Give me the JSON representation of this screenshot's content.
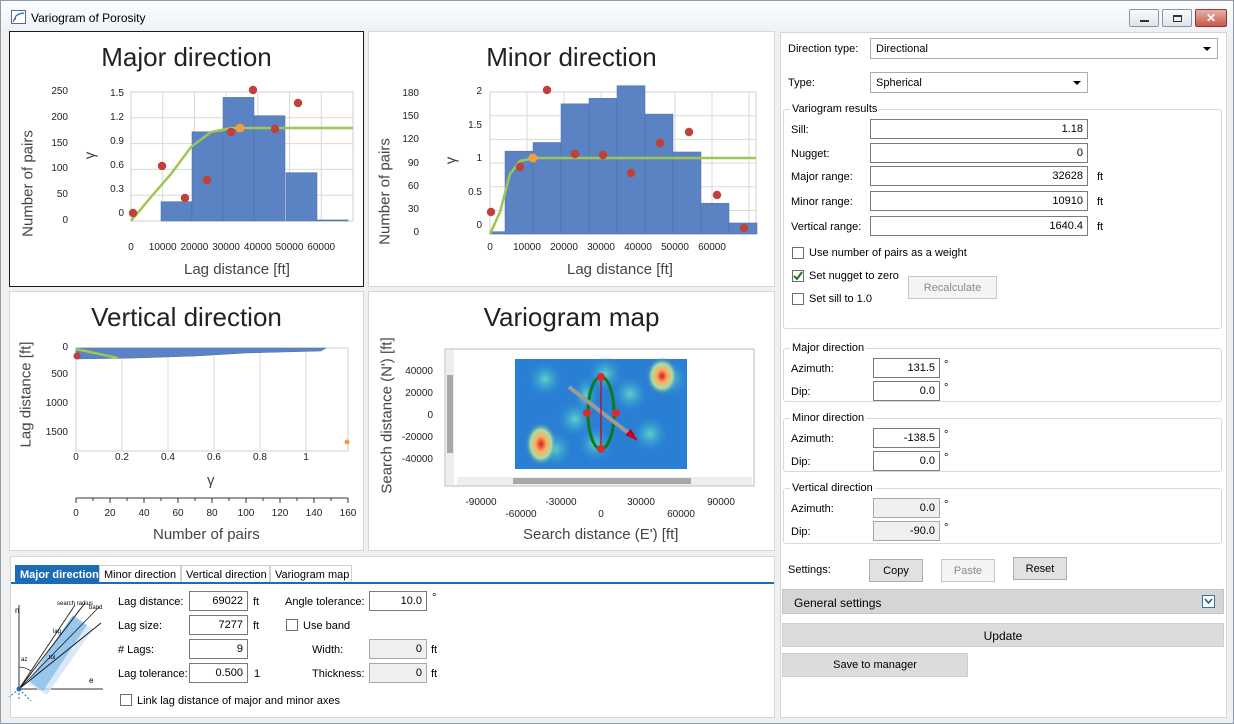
{
  "window": {
    "title": "Variogram of Porosity"
  },
  "panels": {
    "major": {
      "title": "Major direction",
      "ylabel_left": "Number of pairs",
      "ylabel_right": "γ",
      "xlabel": "Lag distance [ft]",
      "pairs_ticks": [
        "250",
        "200",
        "150",
        "100",
        "50",
        "0"
      ],
      "gamma_ticks": [
        "1.5",
        "1.2",
        "0.9",
        "0.6",
        "0.3",
        "0"
      ],
      "x_ticks": [
        "0",
        "10000",
        "20000",
        "30000",
        "40000",
        "50000",
        "60000"
      ]
    },
    "minor": {
      "title": "Minor direction",
      "ylabel_left": "Number of pairs",
      "ylabel_right": "γ",
      "xlabel": "Lag distance [ft]",
      "pairs_ticks": [
        "180",
        "150",
        "120",
        "90",
        "60",
        "30",
        "0"
      ],
      "gamma_ticks": [
        "2",
        "1.5",
        "1",
        "0.5",
        "0"
      ],
      "x_ticks": [
        "0",
        "10000",
        "20000",
        "30000",
        "40000",
        "50000",
        "60000"
      ]
    },
    "vertical": {
      "title": "Vertical direction",
      "ylabel": "Lag distance [ft]",
      "xlabel_gamma": "γ",
      "xlabel_pairs": "Number of pairs",
      "y_ticks": [
        "0",
        "500",
        "1000",
        "1500"
      ],
      "gamma_ticks": [
        "0",
        "0.2",
        "0.4",
        "0.6",
        "0.8",
        "1"
      ],
      "pairs_ticks": [
        "0",
        "20",
        "40",
        "60",
        "80",
        "100",
        "120",
        "140",
        "160"
      ]
    },
    "map": {
      "title": "Variogram map",
      "ylabel": "Search distance (N') [ft]",
      "xlabel": "Search distance (E') [ft]",
      "y_ticks": [
        "40000",
        "20000",
        "0",
        "-20000",
        "-40000"
      ],
      "x_ticks_top": [
        "-90000",
        "-30000",
        "30000",
        "90000"
      ],
      "x_ticks_bottom": [
        "-60000",
        "0",
        "60000"
      ]
    }
  },
  "right": {
    "direction_type_label": "Direction type:",
    "direction_type_value": "Directional",
    "type_label": "Type:",
    "type_value": "Spherical",
    "results": {
      "title": "Variogram results",
      "sill_label": "Sill:",
      "sill": "1.18",
      "nugget_label": "Nugget:",
      "nugget": "0",
      "major_range_label": "Major range:",
      "major_range": "32628",
      "minor_range_label": "Minor range:",
      "minor_range": "10910",
      "vertical_range_label": "Vertical range:",
      "vertical_range": "1640.4",
      "unit": "ft",
      "chk_pairs_weight": "Use number of pairs as a weight",
      "chk_nugget_zero": "Set nugget to zero",
      "chk_sill_one": "Set sill to 1.0",
      "recalculate": "Recalculate"
    },
    "major_dir": {
      "title": "Major direction",
      "azimuth_label": "Azimuth:",
      "azimuth": "131.5",
      "dip_label": "Dip:",
      "dip": "0.0"
    },
    "minor_dir": {
      "title": "Minor direction",
      "azimuth_label": "Azimuth:",
      "azimuth": "-138.5",
      "dip_label": "Dip:",
      "dip": "0.0"
    },
    "vertical_dir": {
      "title": "Vertical direction",
      "azimuth_label": "Azimuth:",
      "azimuth": "0.0",
      "dip_label": "Dip:",
      "dip": "-90.0"
    },
    "degree": "°",
    "settings_label": "Settings:",
    "copy": "Copy",
    "paste": "Paste",
    "reset": "Reset",
    "general_settings": "General settings",
    "update": "Update",
    "save_to_manager": "Save to manager"
  },
  "bottom": {
    "tabs": [
      "Major direction",
      "Minor direction",
      "Vertical direction",
      "Variogram map"
    ],
    "diagram": {
      "n": "n",
      "e": "e",
      "search_radius": "search radius",
      "band": "band",
      "lag": "lag",
      "tol": "tol",
      "az": "az"
    },
    "lag_distance_label": "Lag distance:",
    "lag_distance": "69022",
    "lag_size_label": "Lag size:",
    "lag_size": "7277",
    "n_lags_label": "# Lags:",
    "n_lags": "9",
    "lag_tolerance_label": "Lag tolerance:",
    "lag_tolerance": "0.500",
    "lag_tolerance_unit": "1",
    "angle_tolerance_label": "Angle tolerance:",
    "angle_tolerance": "10.0",
    "use_band_label": "Use band",
    "width_label": "Width:",
    "width": "0",
    "thickness_label": "Thickness:",
    "thickness": "0",
    "unit": "ft",
    "link_label": "Link lag distance of major and minor axes"
  },
  "colors": {
    "bar": "#5b82c2",
    "model": "#9dc653",
    "point": "#c0413a",
    "sill_marker": "#f0a040",
    "tab_active": "#1d6bb4"
  }
}
